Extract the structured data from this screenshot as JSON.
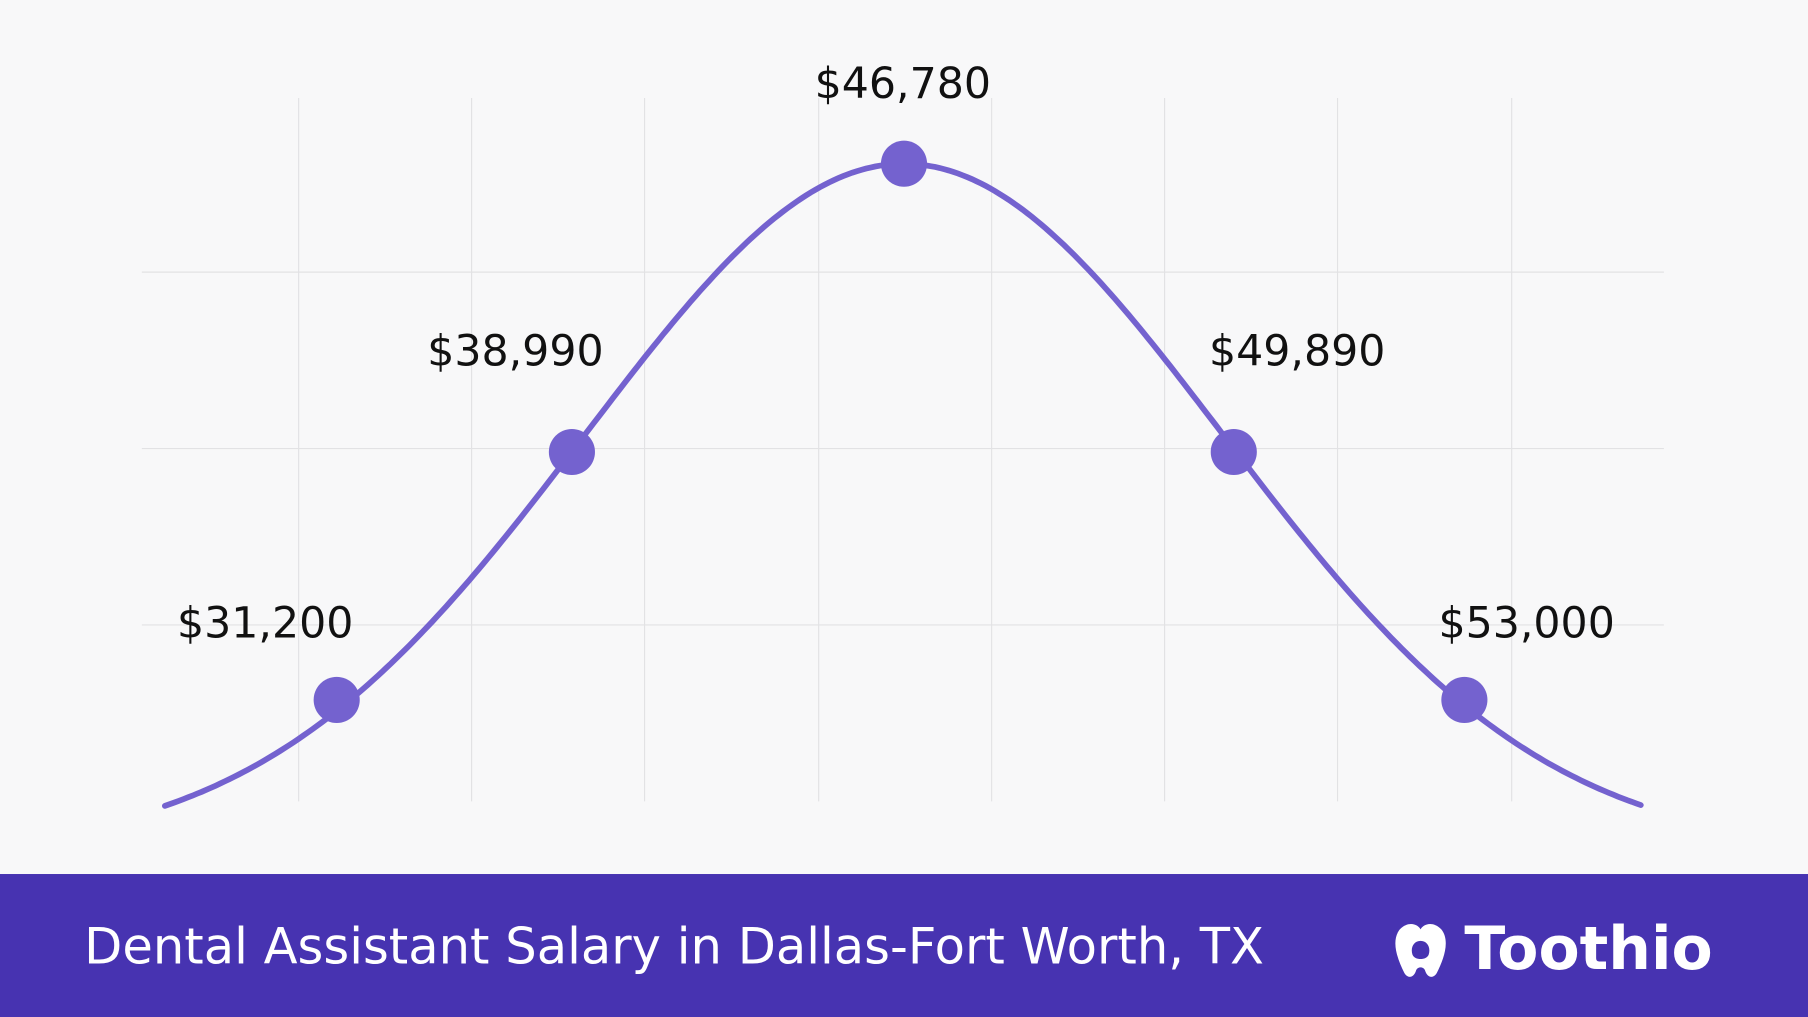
{
  "labels": [
    "$31,200",
    "$38,990",
    "$46,780",
    "$49,890",
    "$53,000"
  ],
  "footer": {
    "title": "Dental Assistant Salary in Dallas-Fort Worth, TX",
    "brand": "Toothio"
  }
}
